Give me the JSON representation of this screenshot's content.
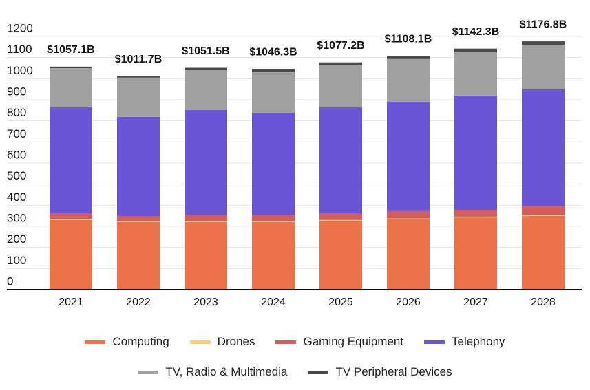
{
  "chart_data": {
    "type": "stacked_bar",
    "categories": [
      "2021",
      "2022",
      "2023",
      "2024",
      "2025",
      "2026",
      "2027",
      "2028"
    ],
    "series": [
      {
        "name": "Computing",
        "color": "#ec7249",
        "values": [
          330,
          320,
          320,
          320,
          326,
          333,
          342,
          349
        ]
      },
      {
        "name": "Drones",
        "color": "#f5cf7a",
        "values": [
          5,
          4,
          4,
          4,
          4,
          4,
          4,
          4
        ]
      },
      {
        "name": "Gaming Equipment",
        "color": "#d35c5c",
        "values": [
          27,
          25,
          31,
          31,
          32,
          35,
          32,
          42
        ]
      },
      {
        "name": "Telephony",
        "color": "#6a55d6",
        "values": [
          502,
          470,
          496,
          483,
          502,
          518,
          542,
          554
        ]
      },
      {
        "name": "TV, Radio & Multimedia",
        "color": "#a0a0a0",
        "values": [
          186,
          186,
          189,
          193,
          199,
          203,
          205,
          211
        ]
      },
      {
        "name": "TV Peripheral Devices",
        "color": "#4a4a4a",
        "values": [
          7.1,
          6.7,
          11.5,
          15.3,
          14.2,
          15.1,
          17.3,
          16.8
        ]
      }
    ],
    "totals": {
      "values": [
        1057.1,
        1011.7,
        1051.5,
        1046.3,
        1077.2,
        1108.1,
        1142.3,
        1176.8
      ],
      "value_labels": [
        "$1057.1B",
        "$1011.7B",
        "$1051.5B",
        "$1046.3B",
        "$1077.2B",
        "$1108.1B",
        "$1142.3B",
        "$1176.8B"
      ]
    },
    "ylim": [
      0,
      1200
    ],
    "yticks": [
      0,
      100,
      200,
      300,
      400,
      500,
      600,
      700,
      800,
      900,
      1000,
      1100,
      1200
    ],
    "grid": true
  }
}
